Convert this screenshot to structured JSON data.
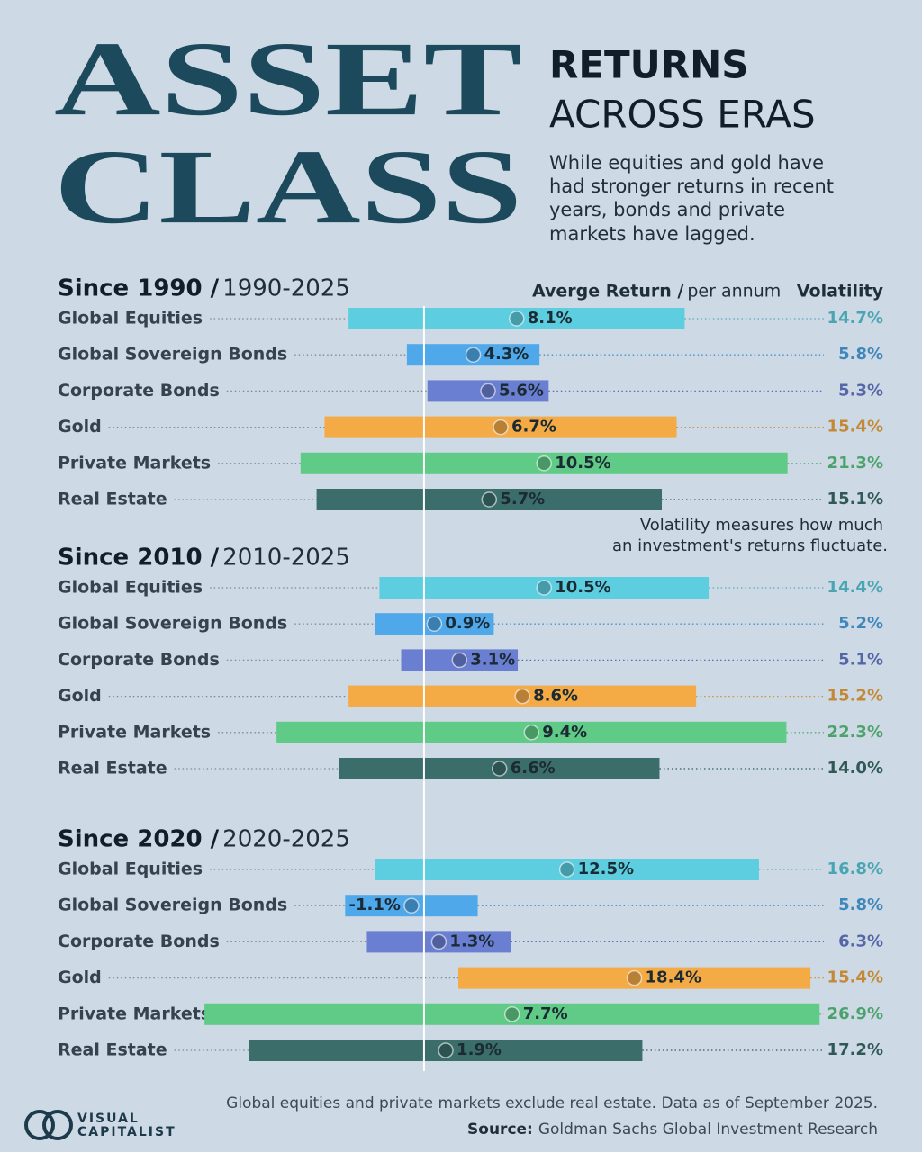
{
  "header": {
    "title_lines": [
      "ASSET",
      "CLASS"
    ],
    "subtitle_bold": "RETURNS",
    "subtitle": "ACROSS ERAS",
    "description": [
      "While equities and gold have",
      "had stronger returns in recent",
      "years, bonds and private",
      "markets have lagged."
    ],
    "return_header": "Averge Return /",
    "return_unit": "per annum",
    "volatility_header": "Volatility",
    "note": [
      "Volatility measures how much",
      "an investment's returns fluctuate."
    ]
  },
  "footer": {
    "note": "Global equities and private markets exclude real estate. Data as of September 2025.",
    "source_label": "Source:",
    "source": "Goldman Sachs Global Investment Research",
    "logo": [
      "VISUAL",
      "CAPITALIST"
    ]
  },
  "chart_data": [
    {
      "type": "range-dot",
      "title": "Since 1990 /",
      "subtitle": "1990-2025",
      "categories": [
        "Global Equities",
        "Global Sovereign Bonds",
        "Corporate Bonds",
        "Gold",
        "Private Markets",
        "Real Estate"
      ],
      "values": [
        8.1,
        4.3,
        5.6,
        6.7,
        10.5,
        5.7
      ],
      "value_labels": [
        "8.1%",
        "4.3%",
        "5.6%",
        "6.7%",
        "10.5%",
        "5.7%"
      ],
      "volatility": [
        14.7,
        5.8,
        5.3,
        15.4,
        21.3,
        15.1
      ],
      "volatility_labels": [
        "14.7%",
        "5.8%",
        "5.3%",
        "15.4%",
        "21.3%",
        "15.1%"
      ],
      "colors": [
        "#5ccee0",
        "#4fa8ea",
        "#6a7fd2",
        "#f5ab45",
        "#5fcb86",
        "#3b6e6b"
      ],
      "xlim": [
        -20,
        36
      ]
    },
    {
      "type": "range-dot",
      "title": "Since 2010 /",
      "subtitle": "2010-2025",
      "categories": [
        "Global Equities",
        "Global Sovereign Bonds",
        "Corporate Bonds",
        "Gold",
        "Private Markets",
        "Real Estate"
      ],
      "values": [
        10.5,
        0.9,
        3.1,
        8.6,
        9.4,
        6.6
      ],
      "value_labels": [
        "10.5%",
        "0.9%",
        "3.1%",
        "8.6%",
        "9.4%",
        "6.6%"
      ],
      "volatility": [
        14.4,
        5.2,
        5.1,
        15.2,
        22.3,
        14.0
      ],
      "volatility_labels": [
        "14.4%",
        "5.2%",
        "5.1%",
        "15.2%",
        "22.3%",
        "14.0%"
      ],
      "colors": [
        "#5ccee0",
        "#4fa8ea",
        "#6a7fd2",
        "#f5ab45",
        "#5fcb86",
        "#3b6e6b"
      ],
      "xlim": [
        -20,
        36
      ]
    },
    {
      "type": "range-dot",
      "title": "Since 2020 /",
      "subtitle": "2020-2025",
      "categories": [
        "Global Equities",
        "Global Sovereign Bonds",
        "Corporate Bonds",
        "Gold",
        "Private Markets",
        "Real Estate"
      ],
      "values": [
        12.5,
        -1.1,
        1.3,
        18.4,
        7.7,
        1.9
      ],
      "value_labels": [
        "12.5%",
        "-1.1%",
        "1.3%",
        "18.4%",
        "7.7%",
        "1.9%"
      ],
      "volatility": [
        16.8,
        5.8,
        6.3,
        15.4,
        26.9,
        17.2
      ],
      "volatility_labels": [
        "16.8%",
        "5.8%",
        "6.3%",
        "15.4%",
        "26.9%",
        "17.2%"
      ],
      "colors": [
        "#5ccee0",
        "#4fa8ea",
        "#6a7fd2",
        "#f5ab45",
        "#5fcb86",
        "#3b6e6b"
      ],
      "xlim": [
        -20,
        36
      ]
    }
  ]
}
